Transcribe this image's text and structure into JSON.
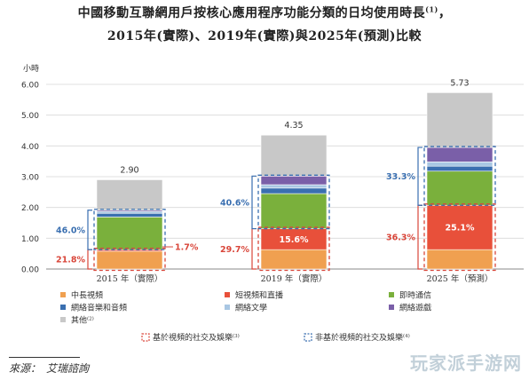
{
  "title_line1": "中國移動互聯網用戶按核心應用程序功能分類的日均使用時長",
  "title_note": "(1)",
  "title_comma": "，",
  "title_line2": "2015年(實際)、2019年(實際)與2025年(預測)比較",
  "source": "來源：　艾瑞諮詢",
  "watermark": "玩家派手游网",
  "chart_data": {
    "type": "bar",
    "stacked": true,
    "ylabel": "小時",
    "ylim": [
      0,
      6
    ],
    "yticks": [
      "0.00",
      "1.00",
      "2.00",
      "3.00",
      "4.00",
      "5.00",
      "6.00"
    ],
    "categories": [
      "2015 年（實際）",
      "2019 年（實際）",
      "2025 年（預測）"
    ],
    "totals": [
      2.9,
      4.35,
      5.73
    ],
    "total_labels": [
      "2.90",
      "4.35",
      "5.73"
    ],
    "series": [
      {
        "name": "中長視頻",
        "color": "#f0a050",
        "values": [
          0.58,
          0.63,
          0.63
        ]
      },
      {
        "name": "短視頻和直播",
        "color": "#e8503a",
        "values": [
          0.05,
          0.68,
          1.44
        ]
      },
      {
        "name": "即時通信",
        "color": "#7ab03c",
        "values": [
          1.06,
          1.14,
          1.11
        ]
      },
      {
        "name": "網絡音樂和音頻",
        "color": "#3a6fb0",
        "values": [
          0.12,
          0.18,
          0.16
        ]
      },
      {
        "name": "網絡文學",
        "color": "#a9c7e3",
        "values": [
          0.06,
          0.11,
          0.14
        ]
      },
      {
        "name": "網絡遊戲",
        "color": "#7a5fa8",
        "values": [
          0.04,
          0.28,
          0.47
        ]
      },
      {
        "name": "其他",
        "color": "#c8c8c8",
        "values": [
          0.99,
          1.33,
          1.78
        ]
      }
    ],
    "series_notes": [
      "",
      "",
      "",
      "",
      "",
      "",
      "(2)"
    ],
    "annotations": {
      "video_social_pct": [
        "21.8%",
        "29.7%",
        "36.3%"
      ],
      "non_video_pct": [
        "46.0%",
        "40.6%",
        "33.3%"
      ],
      "short_video_pct": [
        "1.7%",
        "15.6%",
        "25.1%"
      ]
    },
    "legend_extra": [
      {
        "label": "基於視頻的社交及娛樂",
        "note": "(3)",
        "color": "#d9463a"
      },
      {
        "label": "非基於視頻的社交及娛樂",
        "note": "(4)",
        "color": "#3a6fb0"
      }
    ],
    "red_color": "#d9463a",
    "blue_color": "#3a6fb0"
  }
}
